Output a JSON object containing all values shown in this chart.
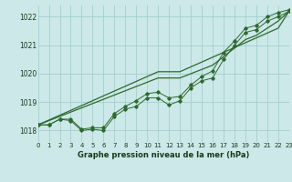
{
  "xlabel": "Graphe pression niveau de la mer (hPa)",
  "background_color": "#cce8e8",
  "grid_color": "#99cccc",
  "line_color": "#2d6a2d",
  "xlim": [
    0,
    23
  ],
  "ylim": [
    1017.6,
    1022.4
  ],
  "yticks": [
    1018,
    1019,
    1020,
    1021,
    1022
  ],
  "xticks": [
    0,
    1,
    2,
    3,
    4,
    5,
    6,
    7,
    8,
    9,
    10,
    11,
    12,
    13,
    14,
    15,
    16,
    17,
    18,
    19,
    20,
    21,
    22,
    23
  ],
  "x": [
    0,
    1,
    2,
    3,
    4,
    5,
    6,
    7,
    8,
    9,
    10,
    11,
    12,
    13,
    14,
    15,
    16,
    17,
    18,
    19,
    20,
    21,
    22,
    23
  ],
  "line_zigzag": [
    1018.2,
    1018.2,
    1018.4,
    1018.35,
    1018.0,
    1018.05,
    1018.0,
    1018.5,
    1018.75,
    1018.85,
    1019.15,
    1019.15,
    1018.9,
    1019.05,
    1019.5,
    1019.75,
    1019.85,
    1020.5,
    1021.0,
    1021.45,
    1021.55,
    1021.85,
    1022.0,
    1022.2
  ],
  "line_upper": [
    1018.2,
    1018.2,
    1018.4,
    1018.4,
    1018.05,
    1018.1,
    1018.1,
    1018.6,
    1018.85,
    1019.05,
    1019.3,
    1019.35,
    1019.15,
    1019.2,
    1019.6,
    1019.9,
    1020.1,
    1020.75,
    1021.15,
    1021.6,
    1021.7,
    1022.0,
    1022.15,
    1022.25
  ],
  "line_straight1": [
    1018.2,
    1018.37,
    1018.54,
    1018.71,
    1018.88,
    1019.05,
    1019.22,
    1019.39,
    1019.56,
    1019.73,
    1019.9,
    1020.07,
    1020.07,
    1020.07,
    1020.24,
    1020.41,
    1020.58,
    1020.75,
    1020.92,
    1021.09,
    1021.26,
    1021.43,
    1021.6,
    1022.2
  ],
  "line_straight2": [
    1018.2,
    1018.35,
    1018.5,
    1018.65,
    1018.8,
    1018.95,
    1019.1,
    1019.25,
    1019.4,
    1019.55,
    1019.7,
    1019.85,
    1019.85,
    1019.85,
    1020.0,
    1020.15,
    1020.3,
    1020.6,
    1020.9,
    1021.2,
    1021.35,
    1021.6,
    1021.85,
    1022.2
  ]
}
